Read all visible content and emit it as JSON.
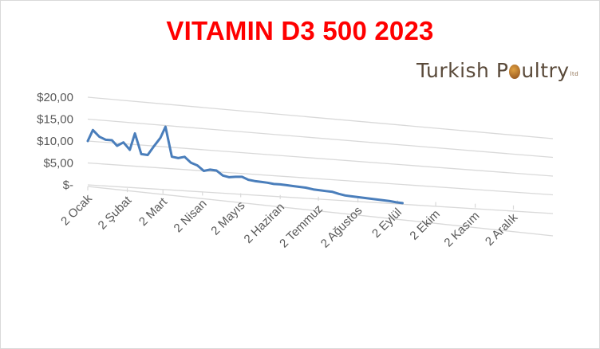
{
  "header": {
    "title": "VITAMIN D3 500 2023"
  },
  "logo": {
    "text_a": "Turkish P",
    "text_b": "ultry",
    "suffix": "ltd"
  },
  "chart_data": {
    "type": "line",
    "title": "VITAMIN D3 500 2023",
    "xlabel": "",
    "ylabel": "",
    "ylim": [
      0,
      20
    ],
    "y_ticks": [
      {
        "value": 0,
        "label": "$-"
      },
      {
        "value": 5,
        "label": "$5,00"
      },
      {
        "value": 10,
        "label": "$10,00"
      },
      {
        "value": 15,
        "label": "$15,00"
      },
      {
        "value": 20,
        "label": "$20,00"
      }
    ],
    "categories": [
      "2 Ocak",
      "2 Şubat",
      "2 Mart",
      "2 Nisan",
      "2 Mayıs",
      "2 Haziran",
      "2 Temmuz",
      "2 Ağustos",
      "2 Eylül",
      "2 Ekim",
      "2 Kasım",
      "2 Aralık"
    ],
    "x_days": [
      0,
      31,
      59,
      90,
      120,
      151,
      181,
      212,
      243,
      273,
      304,
      334
    ],
    "series": [
      {
        "color": "#4a7ebb",
        "points": [
          [
            0,
            10.0
          ],
          [
            4,
            12.6
          ],
          [
            9,
            11.2
          ],
          [
            14,
            10.6
          ],
          [
            19,
            10.6
          ],
          [
            23,
            9.4
          ],
          [
            28,
            10.3
          ],
          [
            33,
            8.7
          ],
          [
            37,
            12.6
          ],
          [
            42,
            7.9
          ],
          [
            47,
            7.8
          ],
          [
            52,
            10.0
          ],
          [
            57,
            12.0
          ],
          [
            61,
            14.7
          ],
          [
            66,
            7.8
          ],
          [
            71,
            7.6
          ],
          [
            76,
            8.0
          ],
          [
            81,
            6.7
          ],
          [
            86,
            6.2
          ],
          [
            91,
            5.0
          ],
          [
            96,
            5.4
          ],
          [
            101,
            5.3
          ],
          [
            106,
            4.2
          ],
          [
            111,
            3.9
          ],
          [
            116,
            4.1
          ],
          [
            121,
            4.2
          ],
          [
            126,
            3.6
          ],
          [
            131,
            3.4
          ],
          [
            136,
            3.3
          ],
          [
            141,
            3.2
          ],
          [
            146,
            3.0
          ],
          [
            151,
            3.0
          ],
          [
            156,
            2.9
          ],
          [
            161,
            2.8
          ],
          [
            166,
            2.7
          ],
          [
            171,
            2.6
          ],
          [
            177,
            2.3
          ],
          [
            182,
            2.2
          ],
          [
            187,
            2.1
          ],
          [
            192,
            2.0
          ],
          [
            197,
            1.6
          ],
          [
            202,
            1.3
          ],
          [
            207,
            1.2
          ],
          [
            212,
            1.1
          ],
          [
            217,
            1.0
          ],
          [
            222,
            0.9
          ],
          [
            227,
            0.8
          ],
          [
            232,
            0.7
          ],
          [
            237,
            0.6
          ],
          [
            242,
            0.4
          ],
          [
            247,
            0.3
          ]
        ]
      }
    ],
    "grid": true,
    "legend": "none"
  }
}
